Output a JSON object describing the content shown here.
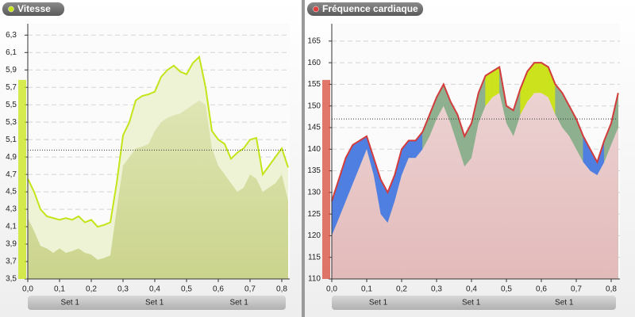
{
  "chart_data": [
    {
      "type": "area",
      "title": "Vitesse",
      "title_dot": "#c8e614",
      "x": [
        0,
        0.02,
        0.04,
        0.06,
        0.08,
        0.1,
        0.12,
        0.14,
        0.16,
        0.18,
        0.2,
        0.22,
        0.24,
        0.26,
        0.28,
        0.3,
        0.32,
        0.34,
        0.36,
        0.38,
        0.4,
        0.42,
        0.44,
        0.46,
        0.48,
        0.5,
        0.52,
        0.54,
        0.56,
        0.58,
        0.6,
        0.62,
        0.64,
        0.66,
        0.68,
        0.7,
        0.72,
        0.74,
        0.76,
        0.78,
        0.8,
        0.82
      ],
      "series": [
        {
          "color": "#c4e41a",
          "fill": "#eef3d6",
          "values": [
            4.65,
            4.5,
            4.3,
            4.22,
            4.2,
            4.18,
            4.2,
            4.18,
            4.22,
            4.15,
            4.18,
            4.1,
            4.12,
            4.15,
            4.6,
            5.15,
            5.3,
            5.55,
            5.6,
            5.62,
            5.65,
            5.82,
            5.9,
            5.95,
            5.88,
            5.85,
            5.98,
            6.05,
            5.7,
            5.2,
            5.1,
            5.05,
            4.88,
            4.95,
            5.0,
            5.1,
            5.12,
            4.7,
            4.8,
            4.9,
            5.0,
            4.78
          ]
        },
        {
          "color": "#cbd48c",
          "fill": "#dfe5b4",
          "values": [
            4.2,
            4.05,
            3.88,
            3.85,
            3.8,
            3.85,
            3.8,
            3.82,
            3.85,
            3.8,
            3.78,
            3.72,
            3.74,
            3.77,
            4.3,
            4.8,
            4.9,
            5.0,
            5.02,
            5.05,
            5.2,
            5.3,
            5.35,
            5.38,
            5.4,
            5.45,
            5.5,
            5.55,
            5.5,
            5.0,
            4.8,
            4.7,
            4.6,
            4.5,
            4.55,
            4.7,
            4.65,
            4.5,
            4.55,
            4.6,
            4.7,
            4.4
          ]
        }
      ],
      "xlim": [
        0,
        0.825
      ],
      "ylim": [
        3.5,
        6.43
      ],
      "xticks": [
        {
          "value": 0,
          "label": "0,0"
        },
        {
          "value": 0.1,
          "label": "0,1"
        },
        {
          "value": 0.2,
          "label": "0,2"
        },
        {
          "value": 0.3,
          "label": "0,3"
        },
        {
          "value": 0.4,
          "label": "0,4"
        },
        {
          "value": 0.5,
          "label": "0,5"
        },
        {
          "value": 0.6,
          "label": "0,6"
        },
        {
          "value": 0.7,
          "label": "0,7"
        },
        {
          "value": 0.8,
          "label": "0,8"
        }
      ],
      "yticks": [
        {
          "value": 3.5,
          "label": "3,5"
        },
        {
          "value": 3.7,
          "label": "3,7"
        },
        {
          "value": 3.9,
          "label": "3,9"
        },
        {
          "value": 4.1,
          "label": "4,1"
        },
        {
          "value": 4.3,
          "label": "4,3"
        },
        {
          "value": 4.5,
          "label": "4,5"
        },
        {
          "value": 4.7,
          "label": "4,7"
        },
        {
          "value": 4.9,
          "label": "4,9"
        },
        {
          "value": 5.1,
          "label": "5,1"
        },
        {
          "value": 5.3,
          "label": "5,3"
        },
        {
          "value": 5.5,
          "label": "5,5"
        },
        {
          "value": 5.7,
          "label": "5,7"
        },
        {
          "value": 5.9,
          "label": "5,9"
        },
        {
          "value": 6.1,
          "label": "6,1"
        },
        {
          "value": 6.3,
          "label": "6,3"
        }
      ],
      "reference": 4.98,
      "grid": true,
      "strip_color": "#c8e614",
      "sets": [
        "Set 1",
        "Set 1",
        "Set 1"
      ]
    },
    {
      "type": "area",
      "title": "Fréquence cardiaque",
      "title_dot": "#e04040",
      "x": [
        0,
        0.02,
        0.04,
        0.06,
        0.08,
        0.1,
        0.12,
        0.14,
        0.16,
        0.18,
        0.2,
        0.22,
        0.24,
        0.26,
        0.28,
        0.3,
        0.32,
        0.34,
        0.36,
        0.38,
        0.4,
        0.42,
        0.44,
        0.46,
        0.48,
        0.5,
        0.52,
        0.54,
        0.56,
        0.58,
        0.6,
        0.62,
        0.64,
        0.66,
        0.68,
        0.7,
        0.72,
        0.74,
        0.76,
        0.78,
        0.8,
        0.82
      ],
      "series": [
        {
          "color": "#d23c3c",
          "fill": "#8fb08f",
          "values": [
            128,
            133,
            138,
            141,
            142,
            143,
            138,
            133,
            130,
            134,
            140,
            142,
            142,
            144,
            148,
            152,
            155,
            151,
            148,
            143,
            146,
            153,
            157,
            158,
            159,
            150,
            149,
            154,
            158,
            160,
            160,
            159,
            155,
            153,
            150,
            147,
            143,
            140,
            137,
            142,
            146,
            153
          ]
        },
        {
          "color": "#e3baba",
          "fill": "#ecd2d2",
          "values": [
            120,
            124,
            128,
            132,
            136,
            140,
            134,
            125,
            123,
            128,
            134,
            138,
            138,
            140,
            143,
            147,
            150,
            146,
            141,
            136,
            138,
            146,
            150,
            152,
            153,
            146,
            143,
            148,
            151,
            153,
            153,
            152,
            148,
            145,
            143,
            140,
            137,
            135,
            134,
            137,
            141,
            145
          ]
        }
      ],
      "zones": [
        {
          "below": 144,
          "color": "#4f7fe0"
        },
        {
          "below": 156,
          "color": "#8fb08f"
        },
        {
          "below": 999,
          "color": "#cbe21c"
        }
      ],
      "xlim": [
        0,
        0.825
      ],
      "ylim": [
        110,
        169
      ],
      "xticks": [
        {
          "value": 0,
          "label": "0,0"
        },
        {
          "value": 0.1,
          "label": "0,1"
        },
        {
          "value": 0.2,
          "label": "0,2"
        },
        {
          "value": 0.3,
          "label": "0,3"
        },
        {
          "value": 0.4,
          "label": "0,4"
        },
        {
          "value": 0.5,
          "label": "0,5"
        },
        {
          "value": 0.6,
          "label": "0,6"
        },
        {
          "value": 0.7,
          "label": "0,7"
        },
        {
          "value": 0.8,
          "label": "0,8"
        }
      ],
      "yticks": [
        110,
        115,
        120,
        125,
        130,
        135,
        140,
        145,
        150,
        155,
        160,
        165
      ],
      "reference": 147,
      "grid": true,
      "strip_color": "#d84a3a",
      "sets": [
        "Set 1",
        "Set 1",
        "Set 1"
      ]
    }
  ]
}
